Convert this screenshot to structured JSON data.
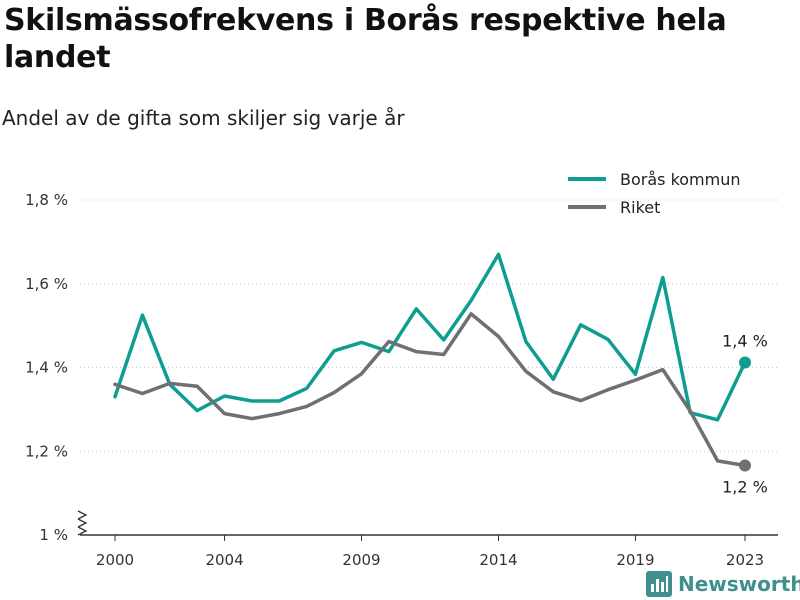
{
  "title": "Skilsmässofrekvens i Borås respektive hela landet",
  "subtitle": "Andel av de gifta som skiljer sig varje år",
  "brand": {
    "name": "Newsworthy",
    "icon": "bar-chart-logo-icon"
  },
  "colors": {
    "boras": "#0e9e8f",
    "riket": "#6f6f74",
    "grid": "#c8c8c8",
    "brand": "#3f8f8c"
  },
  "chart_data": {
    "type": "line",
    "x": [
      2000,
      2001,
      2002,
      2003,
      2004,
      2005,
      2006,
      2007,
      2008,
      2009,
      2010,
      2011,
      2012,
      2013,
      2014,
      2015,
      2016,
      2017,
      2018,
      2019,
      2020,
      2021,
      2022,
      2023
    ],
    "x_ticks": [
      2000,
      2004,
      2009,
      2014,
      2019,
      2023
    ],
    "x_tick_labels": [
      "2000",
      "2004",
      "2009",
      "2014",
      "2019",
      "2023"
    ],
    "ylim": [
      1.0,
      1.8
    ],
    "y_ticks": [
      1.0,
      1.2,
      1.4,
      1.6,
      1.8
    ],
    "y_tick_labels": [
      "1 %",
      "1,2 %",
      "1,4 %",
      "1,6 %",
      "1,8 %"
    ],
    "y_axis_break": true,
    "grid": true,
    "legend_position": "top-right",
    "series": [
      {
        "name": "Borås kommun",
        "color": "#0e9e8f",
        "values": [
          1.33,
          1.525,
          1.36,
          1.297,
          1.332,
          1.32,
          1.32,
          1.35,
          1.44,
          1.46,
          1.438,
          1.54,
          1.466,
          1.56,
          1.67,
          1.462,
          1.372,
          1.502,
          1.467,
          1.384,
          1.615,
          1.292,
          1.275,
          1.412
        ],
        "end_label": "1,4 %"
      },
      {
        "name": "Riket",
        "color": "#6f6f74",
        "values": [
          1.36,
          1.338,
          1.362,
          1.355,
          1.29,
          1.278,
          1.29,
          1.307,
          1.34,
          1.385,
          1.462,
          1.438,
          1.431,
          1.528,
          1.474,
          1.391,
          1.342,
          1.321,
          1.347,
          1.37,
          1.395,
          1.296,
          1.177,
          1.166
        ],
        "end_label": "1,2 %"
      }
    ]
  }
}
